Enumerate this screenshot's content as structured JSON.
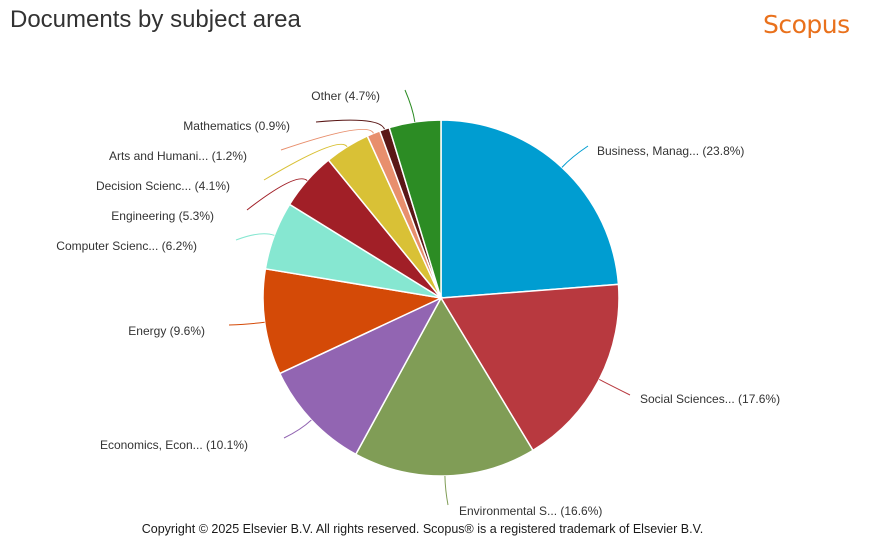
{
  "header": {
    "title": "Documents by subject area",
    "brand": "Scopus"
  },
  "footer": {
    "copyright": "Copyright © 2025 Elsevier B.V. All rights reserved. Scopus® is a registered trademark of Elsevier B.V."
  },
  "chart_data": {
    "type": "pie",
    "title": "Documents by subject area",
    "legend": "none",
    "slices": [
      {
        "label": "Business, Manag... (23.8%)",
        "value": 23.8,
        "color": "#009dd1"
      },
      {
        "label": "Social Sciences... (17.6%)",
        "value": 17.6,
        "color": "#b8393f"
      },
      {
        "label": "Environmental S... (16.6%)",
        "value": 16.6,
        "color": "#809d56"
      },
      {
        "label": "Economics, Econ... (10.1%)",
        "value": 10.1,
        "color": "#9265b2"
      },
      {
        "label": "Energy (9.6%)",
        "value": 9.6,
        "color": "#d44a07"
      },
      {
        "label": "Computer Scienc... (6.2%)",
        "value": 6.2,
        "color": "#86e7d1"
      },
      {
        "label": "Engineering (5.3%)",
        "value": 5.3,
        "color": "#a11f27"
      },
      {
        "label": "Decision Scienc... (4.1%)",
        "value": 4.1,
        "color": "#d9c136"
      },
      {
        "label": "Arts and Humani... (1.2%)",
        "value": 1.2,
        "color": "#e88f6d"
      },
      {
        "label": "Mathematics (0.9%)",
        "value": 0.9,
        "color": "#5a1716"
      },
      {
        "label": "Other (4.7%)",
        "value": 4.7,
        "color": "#2c8c24"
      }
    ]
  }
}
